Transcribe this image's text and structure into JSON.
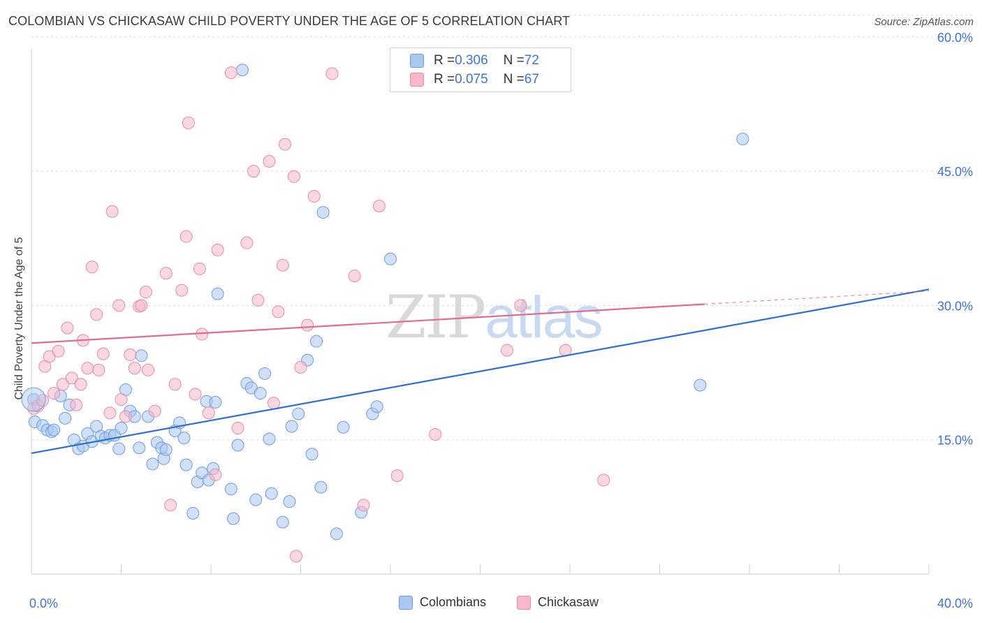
{
  "header": {
    "title": "COLOMBIAN VS CHICKASAW CHILD POVERTY UNDER THE AGE OF 5 CORRELATION CHART",
    "source": "Source: ZipAtlas.com"
  },
  "watermark": {
    "zip": "ZIP",
    "atlas": "atlas"
  },
  "legend": {
    "r_label": "R = ",
    "n_label": "N = ",
    "rows": [
      {
        "r": "0.306",
        "n": "72",
        "color": "#a9c7f0"
      },
      {
        "r": "0.075",
        "n": "67",
        "color": "#f6b8ca"
      }
    ]
  },
  "bottom_legend": {
    "colombians": "Colombians",
    "chickasaw": "Chickasaw"
  },
  "chart_data": {
    "type": "scatter",
    "title": "COLOMBIAN VS CHICKASAW CHILD POVERTY UNDER THE AGE OF 5 CORRELATION CHART",
    "xlabel": "",
    "ylabel": "Child Poverty Under the Age of 5",
    "xlim": [
      0,
      40
    ],
    "ylim": [
      0,
      63
    ],
    "x_tick_labels": [
      "0.0%",
      "40.0%"
    ],
    "y_ticks": [
      15,
      30,
      45,
      60
    ],
    "y_tick_labels": [
      "15.0%",
      "30.0%",
      "45.0%",
      "60.0%"
    ],
    "grid": true,
    "series": [
      {
        "name": "Colombians",
        "color": "#a9c7f0",
        "edge": "#6f9be0",
        "line_color": "#2e6fd0",
        "trend": {
          "x0": 0,
          "y0": 13.5,
          "x1": 40,
          "y1": 31.8,
          "dashed_from": null
        },
        "points": [
          [
            0.1,
            19.5
          ],
          [
            0.15,
            17.0
          ],
          [
            0.5,
            16.6
          ],
          [
            0.7,
            16.1
          ],
          [
            0.9,
            15.9
          ],
          [
            1.0,
            16.1
          ],
          [
            1.3,
            19.9
          ],
          [
            1.5,
            17.4
          ],
          [
            1.7,
            18.9
          ],
          [
            1.9,
            15.0
          ],
          [
            2.1,
            14.0
          ],
          [
            2.3,
            14.3
          ],
          [
            2.5,
            15.7
          ],
          [
            2.7,
            14.8
          ],
          [
            2.9,
            16.5
          ],
          [
            3.1,
            15.4
          ],
          [
            3.3,
            15.2
          ],
          [
            3.5,
            15.5
          ],
          [
            3.7,
            15.5
          ],
          [
            3.9,
            14.0
          ],
          [
            4.0,
            16.3
          ],
          [
            4.2,
            20.6
          ],
          [
            4.4,
            18.2
          ],
          [
            4.6,
            17.6
          ],
          [
            4.8,
            14.1
          ],
          [
            4.9,
            24.4
          ],
          [
            5.2,
            17.6
          ],
          [
            5.4,
            12.3
          ],
          [
            5.6,
            14.7
          ],
          [
            5.8,
            14.1
          ],
          [
            5.9,
            12.9
          ],
          [
            6.0,
            13.9
          ],
          [
            6.4,
            16.0
          ],
          [
            6.6,
            16.9
          ],
          [
            6.8,
            15.2
          ],
          [
            6.9,
            12.2
          ],
          [
            7.2,
            6.8
          ],
          [
            7.4,
            10.3
          ],
          [
            7.6,
            11.3
          ],
          [
            7.8,
            19.3
          ],
          [
            7.9,
            10.5
          ],
          [
            8.1,
            11.8
          ],
          [
            8.2,
            19.2
          ],
          [
            8.3,
            31.3
          ],
          [
            8.9,
            9.5
          ],
          [
            9.0,
            6.2
          ],
          [
            9.2,
            14.4
          ],
          [
            9.4,
            56.3
          ],
          [
            9.6,
            21.3
          ],
          [
            9.8,
            20.8
          ],
          [
            10.0,
            8.3
          ],
          [
            10.2,
            20.2
          ],
          [
            10.4,
            22.4
          ],
          [
            10.6,
            15.1
          ],
          [
            10.7,
            9.0
          ],
          [
            11.2,
            5.8
          ],
          [
            11.5,
            8.1
          ],
          [
            11.6,
            16.5
          ],
          [
            11.9,
            17.9
          ],
          [
            12.3,
            23.9
          ],
          [
            12.5,
            13.4
          ],
          [
            12.7,
            26.0
          ],
          [
            12.9,
            9.7
          ],
          [
            13.0,
            40.4
          ],
          [
            13.6,
            4.5
          ],
          [
            13.9,
            16.4
          ],
          [
            14.7,
            6.9
          ],
          [
            15.2,
            17.9
          ],
          [
            15.4,
            18.7
          ],
          [
            16.0,
            35.2
          ],
          [
            29.8,
            21.1
          ],
          [
            31.7,
            48.6
          ]
        ]
      },
      {
        "name": "Chickasaw",
        "color": "#f6b8ca",
        "edge": "#e98aa6",
        "line_color": "#e36a8f",
        "trend": {
          "x0": 0,
          "y0": 25.8,
          "x1": 40,
          "y1": 31.6,
          "dashed_from": 30.0
        },
        "points": [
          [
            0.1,
            18.5
          ],
          [
            0.3,
            18.8
          ],
          [
            0.5,
            19.4
          ],
          [
            0.6,
            23.2
          ],
          [
            0.8,
            24.3
          ],
          [
            1.0,
            20.2
          ],
          [
            1.2,
            24.9
          ],
          [
            1.4,
            21.2
          ],
          [
            1.6,
            27.5
          ],
          [
            1.8,
            21.9
          ],
          [
            2.0,
            18.9
          ],
          [
            2.2,
            21.2
          ],
          [
            2.3,
            26.1
          ],
          [
            2.5,
            23.0
          ],
          [
            2.7,
            34.3
          ],
          [
            2.9,
            29.0
          ],
          [
            3.0,
            22.8
          ],
          [
            3.2,
            24.6
          ],
          [
            3.5,
            18.0
          ],
          [
            3.6,
            40.5
          ],
          [
            3.9,
            30.0
          ],
          [
            4.0,
            19.5
          ],
          [
            4.2,
            17.6
          ],
          [
            4.4,
            24.5
          ],
          [
            4.6,
            23.0
          ],
          [
            4.8,
            29.9
          ],
          [
            4.9,
            30.0
          ],
          [
            5.1,
            31.5
          ],
          [
            5.2,
            22.8
          ],
          [
            5.5,
            18.2
          ],
          [
            6.0,
            33.6
          ],
          [
            6.2,
            7.7
          ],
          [
            6.4,
            21.2
          ],
          [
            6.7,
            31.7
          ],
          [
            6.9,
            37.7
          ],
          [
            7.0,
            50.4
          ],
          [
            7.3,
            20.1
          ],
          [
            7.5,
            34.1
          ],
          [
            7.6,
            26.8
          ],
          [
            7.9,
            18.0
          ],
          [
            8.2,
            11.1
          ],
          [
            8.3,
            36.2
          ],
          [
            8.9,
            56.0
          ],
          [
            9.2,
            16.3
          ],
          [
            9.6,
            37.0
          ],
          [
            9.9,
            45.0
          ],
          [
            10.1,
            30.6
          ],
          [
            10.6,
            46.1
          ],
          [
            10.8,
            19.1
          ],
          [
            11.0,
            29.3
          ],
          [
            11.2,
            34.5
          ],
          [
            11.3,
            48.0
          ],
          [
            11.7,
            44.4
          ],
          [
            11.8,
            2.0
          ],
          [
            12.0,
            23.1
          ],
          [
            12.3,
            27.8
          ],
          [
            12.6,
            42.2
          ],
          [
            13.4,
            55.9
          ],
          [
            14.4,
            33.3
          ],
          [
            14.8,
            7.7
          ],
          [
            15.5,
            41.1
          ],
          [
            16.3,
            11.0
          ],
          [
            18.0,
            15.6
          ],
          [
            21.2,
            25.0
          ],
          [
            21.8,
            30.0
          ],
          [
            23.8,
            25.0
          ],
          [
            25.5,
            10.5
          ]
        ]
      }
    ]
  }
}
